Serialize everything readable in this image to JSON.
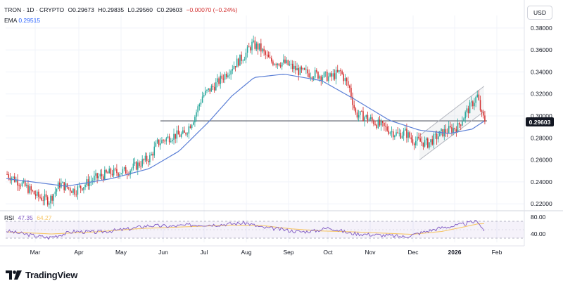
{
  "header": {
    "symbol": "TRON · 1D · CRYPTO",
    "open": "O0.29673",
    "high": "H0.29835",
    "low": "L0.29560",
    "close": "C0.29603",
    "change": "−0.00070 (−0.24%)"
  },
  "ema": {
    "label": "EMA",
    "value": "0.29515"
  },
  "rsi": {
    "label": "RSI",
    "value": "47.35",
    "ma_value": "64.27"
  },
  "currency_button": "USD",
  "brand": "TradingView",
  "colors": {
    "up": "#26a69a",
    "down": "#d32f2f",
    "ema": "#5b7fd6",
    "rsi": "#7e57c2",
    "rsi_ma": "#f6c76a",
    "price_tag": "#131722"
  },
  "chart_data": {
    "type": "candlestick",
    "price_axis": {
      "ticks": [
        "0.38000",
        "0.36000",
        "0.34000",
        "0.32000",
        "0.30000",
        "0.28000",
        "0.26000",
        "0.24000",
        "0.22000"
      ],
      "range": [
        0.215,
        0.385
      ]
    },
    "time_axis": {
      "labels": [
        "Mar",
        "Apr",
        "May",
        "Jun",
        "Jul",
        "Aug",
        "Sep",
        "Oct",
        "Nov",
        "Dec",
        "2026",
        "Feb"
      ]
    },
    "last_price_label": "0.29603",
    "rsi_axis": {
      "ticks": [
        "80.00",
        "40.00"
      ],
      "bands": [
        70,
        30
      ],
      "range": [
        20,
        90
      ]
    },
    "price_path": [
      [
        0,
        0.247
      ],
      [
        10,
        0.238
      ],
      [
        20,
        0.227
      ],
      [
        28,
        0.223
      ],
      [
        35,
        0.238
      ],
      [
        45,
        0.232
      ],
      [
        58,
        0.243
      ],
      [
        68,
        0.248
      ],
      [
        80,
        0.25
      ],
      [
        95,
        0.262
      ],
      [
        100,
        0.275
      ],
      [
        110,
        0.282
      ],
      [
        118,
        0.283
      ],
      [
        125,
        0.3
      ],
      [
        130,
        0.318
      ],
      [
        140,
        0.33
      ],
      [
        150,
        0.345
      ],
      [
        158,
        0.355
      ],
      [
        163,
        0.365
      ],
      [
        168,
        0.362
      ],
      [
        175,
        0.35
      ],
      [
        185,
        0.348
      ],
      [
        195,
        0.34
      ],
      [
        205,
        0.338
      ],
      [
        215,
        0.335
      ],
      [
        222,
        0.34
      ],
      [
        228,
        0.325
      ],
      [
        232,
        0.302
      ],
      [
        240,
        0.298
      ],
      [
        250,
        0.29
      ],
      [
        260,
        0.283
      ],
      [
        265,
        0.285
      ],
      [
        270,
        0.278
      ],
      [
        280,
        0.275
      ],
      [
        290,
        0.285
      ],
      [
        300,
        0.29
      ],
      [
        305,
        0.302
      ],
      [
        310,
        0.312
      ],
      [
        313,
        0.318
      ],
      [
        316,
        0.3
      ],
      [
        318,
        0.296
      ]
    ],
    "ema_path": [
      [
        0,
        0.243
      ],
      [
        40,
        0.236
      ],
      [
        70,
        0.243
      ],
      [
        95,
        0.252
      ],
      [
        115,
        0.268
      ],
      [
        135,
        0.295
      ],
      [
        150,
        0.318
      ],
      [
        165,
        0.335
      ],
      [
        185,
        0.338
      ],
      [
        210,
        0.332
      ],
      [
        232,
        0.315
      ],
      [
        255,
        0.296
      ],
      [
        275,
        0.287
      ],
      [
        295,
        0.284
      ],
      [
        310,
        0.288
      ],
      [
        318,
        0.2952
      ]
    ],
    "horizontal_line": 0.2955,
    "channel": {
      "x0": 275,
      "x1": 318,
      "upper": [
        0.282,
        0.327
      ],
      "lower": [
        0.26,
        0.304
      ]
    },
    "rsi_path": [
      [
        0,
        47
      ],
      [
        15,
        38
      ],
      [
        28,
        31
      ],
      [
        45,
        46
      ],
      [
        60,
        44
      ],
      [
        80,
        51
      ],
      [
        95,
        60
      ],
      [
        110,
        58
      ],
      [
        125,
        62
      ],
      [
        140,
        62
      ],
      [
        150,
        64
      ],
      [
        160,
        66
      ],
      [
        170,
        55
      ],
      [
        180,
        52
      ],
      [
        195,
        45
      ],
      [
        205,
        47
      ],
      [
        215,
        55
      ],
      [
        228,
        42
      ],
      [
        240,
        39
      ],
      [
        255,
        36
      ],
      [
        265,
        33
      ],
      [
        275,
        42
      ],
      [
        290,
        55
      ],
      [
        300,
        60
      ],
      [
        310,
        68
      ],
      [
        314,
        70
      ],
      [
        318,
        47
      ]
    ],
    "rsi_ma_path": [
      [
        0,
        45
      ],
      [
        30,
        40
      ],
      [
        60,
        45
      ],
      [
        90,
        53
      ],
      [
        120,
        57
      ],
      [
        150,
        61
      ],
      [
        170,
        60
      ],
      [
        190,
        52
      ],
      [
        210,
        47
      ],
      [
        230,
        45
      ],
      [
        250,
        42
      ],
      [
        270,
        39
      ],
      [
        290,
        46
      ],
      [
        305,
        57
      ],
      [
        314,
        64
      ],
      [
        318,
        64.27
      ]
    ]
  }
}
